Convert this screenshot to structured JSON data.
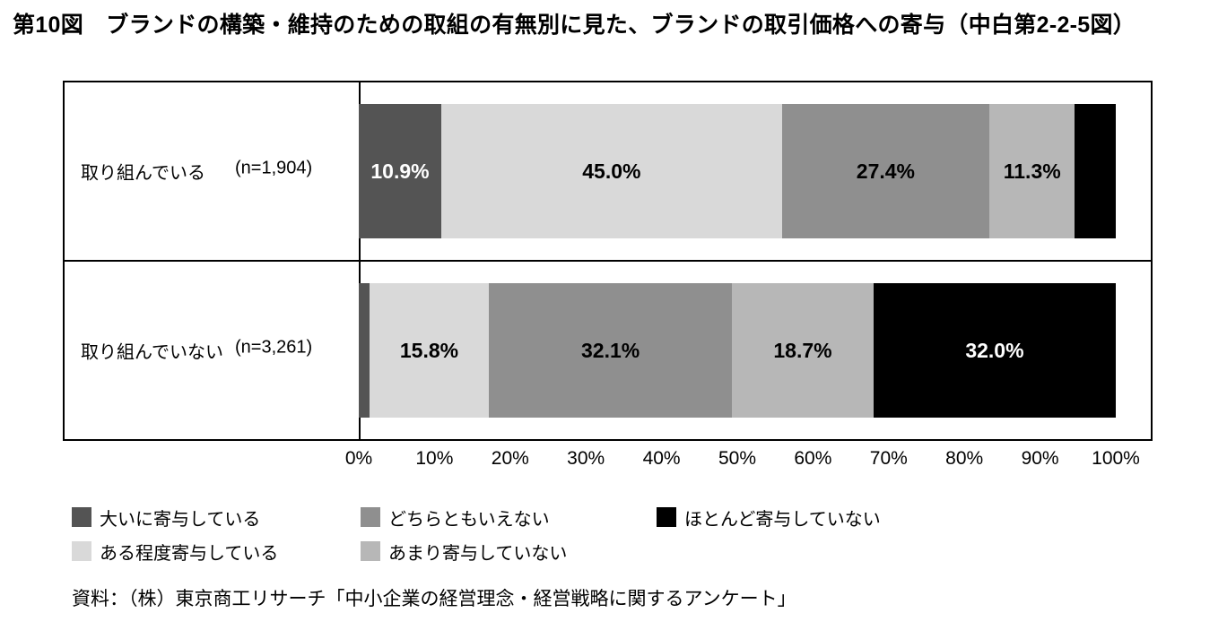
{
  "title": "第10図　ブランドの構築・維持のための取組の有無別に見た、ブランドの取引価格への寄与（中白第2-2-5図）",
  "source": "資料：（株）東京商工リサーチ「中小企業の経営理念・経営戦略に関するアンケート」",
  "chart_data": {
    "type": "bar",
    "subtype": "stacked-horizontal-100percent",
    "unit": "%",
    "grid": false,
    "legend_position": "bottom",
    "categories": [
      {
        "label": "取り組んでいる",
        "n": "(n=1,904)"
      },
      {
        "label": "取り組んでいない",
        "n": "(n=3,261)"
      }
    ],
    "series": [
      {
        "name": "大いに寄与している",
        "color": "#545454",
        "values": [
          10.9,
          1.4
        ],
        "labels": [
          "10.9%",
          null
        ],
        "label_colors": [
          "#ffffff",
          null
        ]
      },
      {
        "name": "ある程度寄与している",
        "color": "#d9d9d9",
        "values": [
          45.0,
          15.8
        ],
        "labels": [
          "45.0%",
          "15.8%"
        ],
        "label_colors": [
          "#000000",
          "#000000"
        ]
      },
      {
        "name": "どちらともいえない",
        "color": "#8f8f8f",
        "values": [
          27.4,
          32.1
        ],
        "labels": [
          "27.4%",
          "32.1%"
        ],
        "label_colors": [
          "#000000",
          "#000000"
        ]
      },
      {
        "name": "あまり寄与していない",
        "color": "#b7b7b7",
        "values": [
          11.3,
          18.7
        ],
        "labels": [
          "11.3%",
          "18.7%"
        ],
        "label_colors": [
          "#000000",
          "#000000"
        ]
      },
      {
        "name": "ほとんど寄与していない",
        "color": "#000000",
        "values": [
          5.4,
          32.0
        ],
        "labels": [
          null,
          "32.0%"
        ],
        "label_colors": [
          null,
          "#ffffff"
        ]
      }
    ],
    "axis": {
      "xlim": [
        0,
        100
      ],
      "ticks": [
        "0%",
        "10%",
        "20%",
        "30%",
        "40%",
        "50%",
        "60%",
        "70%",
        "80%",
        "90%",
        "100%"
      ]
    }
  }
}
